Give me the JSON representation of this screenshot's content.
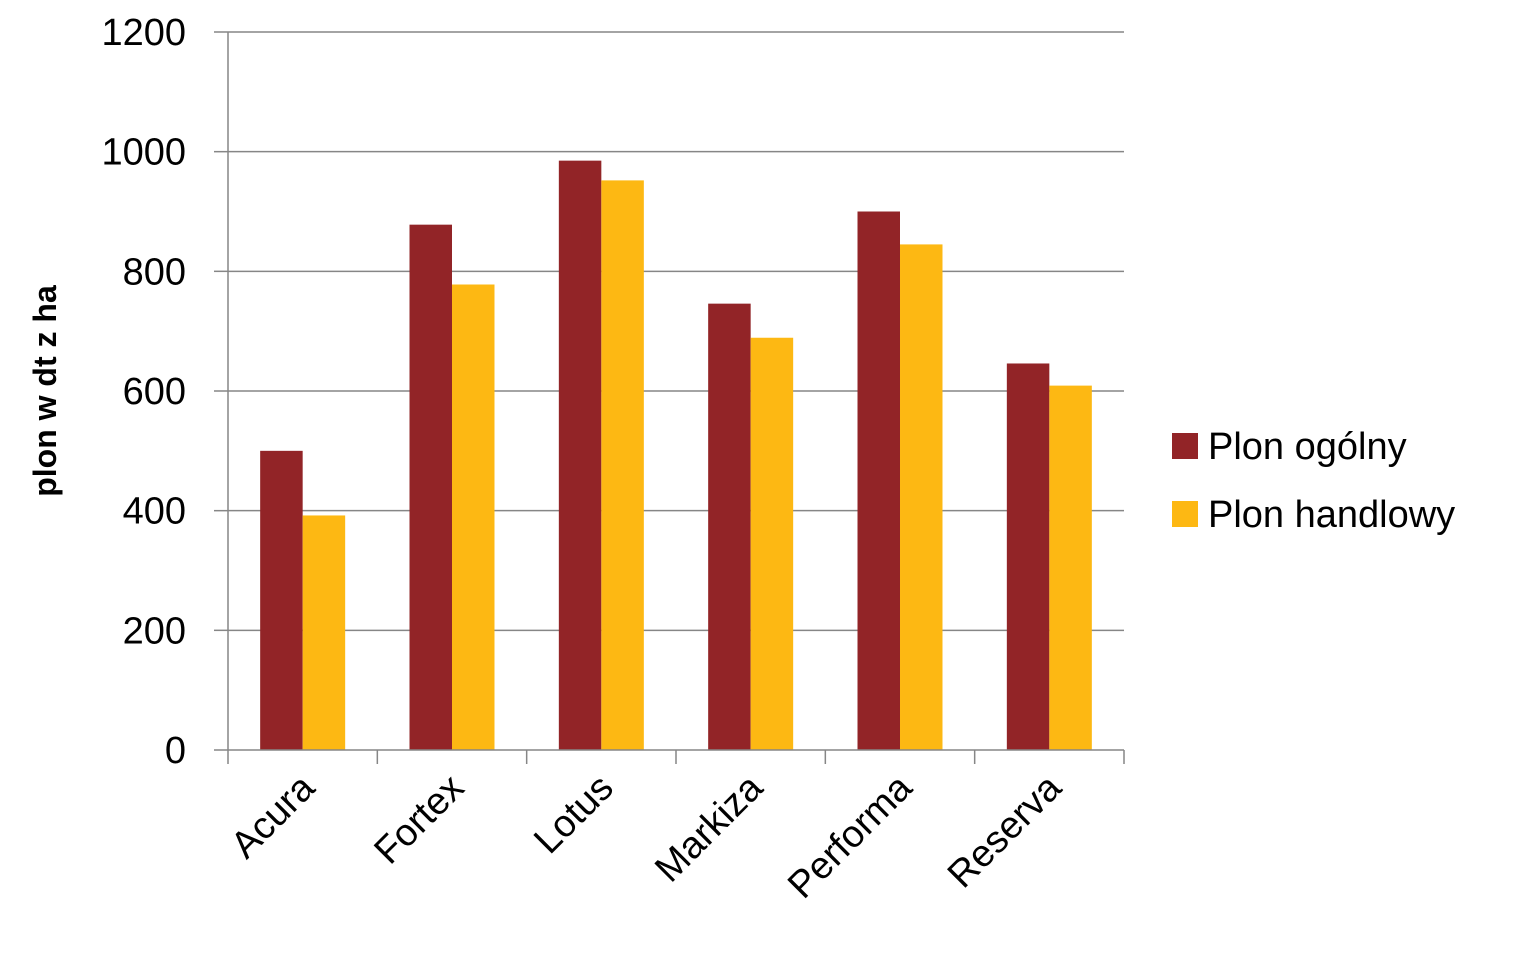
{
  "chart_data": {
    "type": "bar",
    "title": "",
    "xlabel": "",
    "ylabel": "plon w dt z ha",
    "ylim": [
      0,
      1200
    ],
    "yticks": [
      0,
      200,
      400,
      600,
      800,
      1000,
      1200
    ],
    "grid": true,
    "legend_position": "right",
    "categories": [
      "Acura",
      "Fortex",
      "Lotus",
      "Markiza",
      "Performa",
      "Reserva"
    ],
    "series": [
      {
        "name": "Plon ogólny",
        "color": "#922427",
        "values": [
          500,
          878,
          985,
          746,
          900,
          646
        ]
      },
      {
        "name": "Plon handlowy",
        "color": "#FDB813",
        "values": [
          392,
          778,
          952,
          689,
          845,
          609
        ]
      }
    ]
  }
}
